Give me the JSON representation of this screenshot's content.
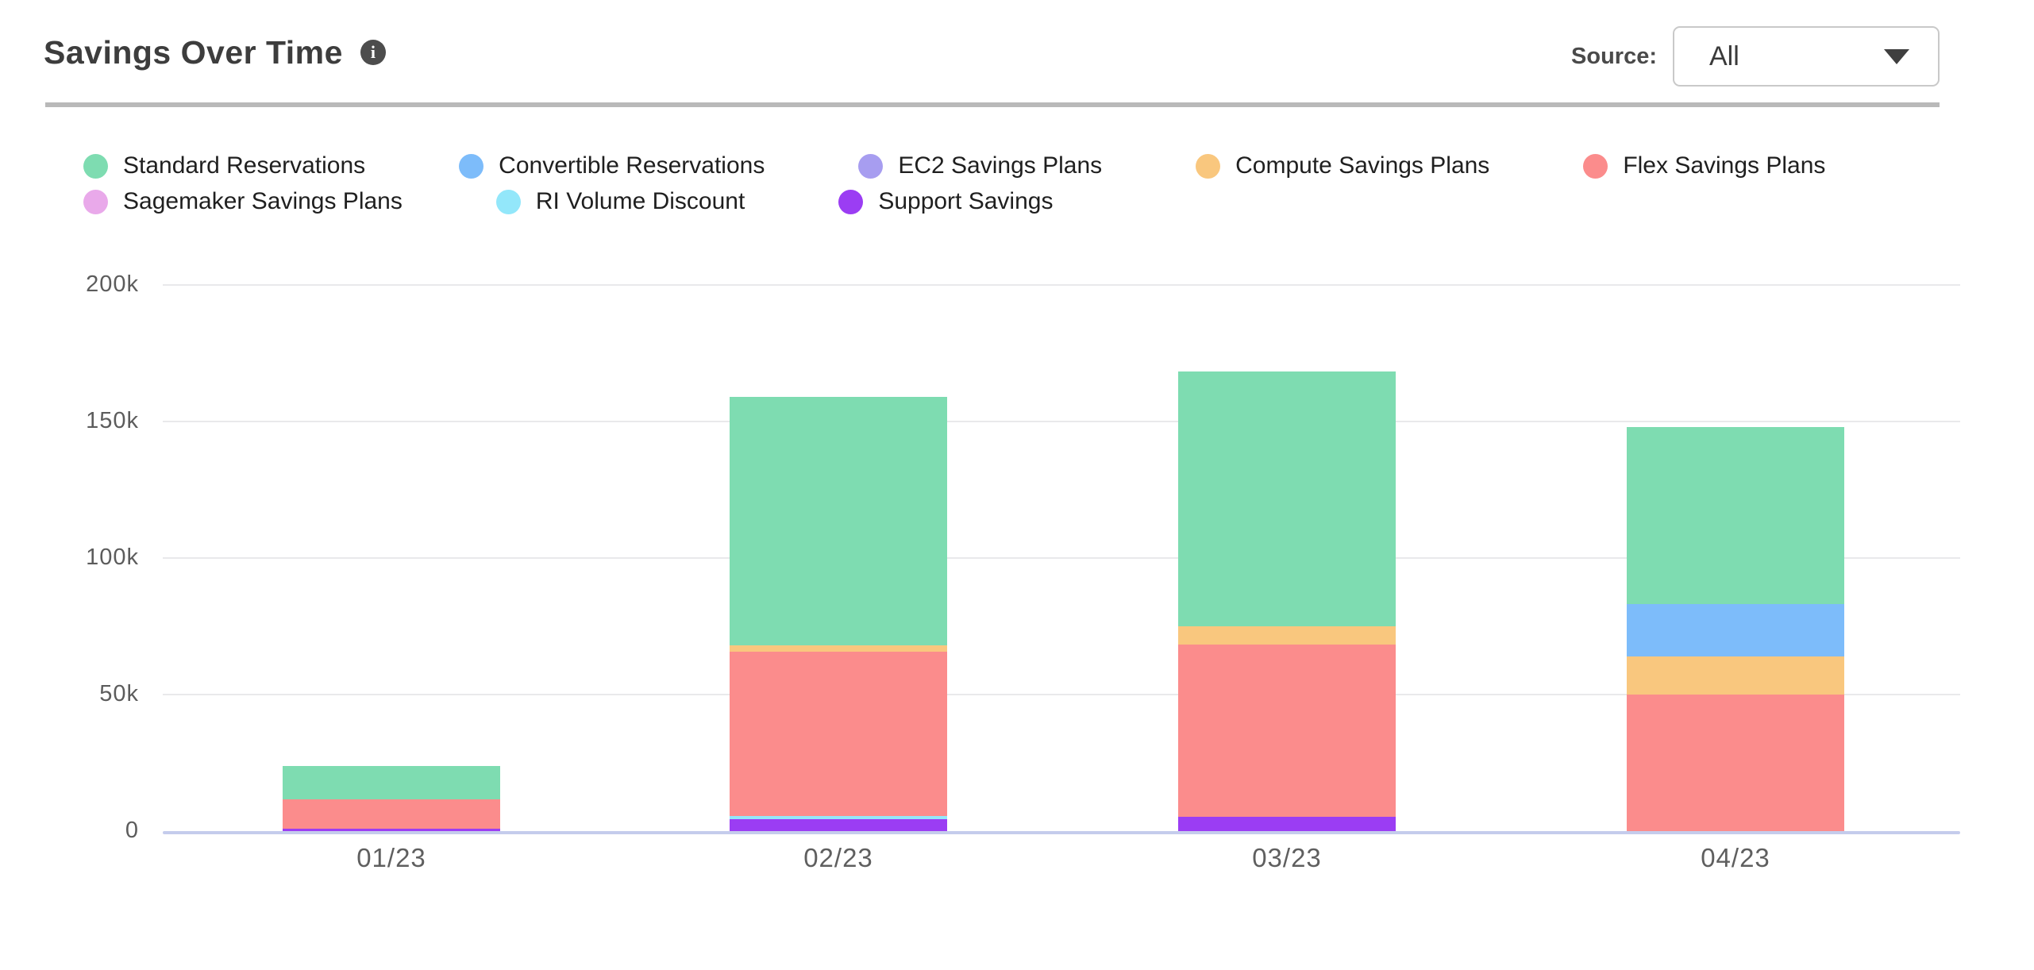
{
  "header": {
    "title": "Savings Over Time",
    "info_icon": "info-circle-icon",
    "source_label": "Source:",
    "source_value": "All"
  },
  "chart_data": {
    "type": "bar",
    "stacked": true,
    "title": "Savings Over Time",
    "xlabel": "",
    "ylabel": "",
    "y_unit": "thousands of dollars (k)",
    "ylim": [
      0,
      200
    ],
    "grid": "horizontal",
    "legend_position": "top-left, two rows",
    "stack_order": "reverse of series list (Support Savings at bottom, Standard Reservations on top)",
    "categories": [
      "01/23",
      "02/23",
      "03/23",
      "04/23"
    ],
    "series": [
      {
        "name": "Standard Reservations",
        "color": "#7EDCB1",
        "values": [
          12.2,
          91.0,
          93.5,
          65.0
        ]
      },
      {
        "name": "Convertible Reservations",
        "color": "#7DBCFA",
        "values": [
          0,
          0,
          0,
          19.0
        ]
      },
      {
        "name": "EC2 Savings Plans",
        "color": "#A79DF0",
        "values": [
          0,
          0,
          0,
          0
        ]
      },
      {
        "name": "Compute Savings Plans",
        "color": "#F9C77E",
        "values": [
          0,
          2.3,
          6.7,
          14.0
        ]
      },
      {
        "name": "Flex Savings Plans",
        "color": "#FB8C8C",
        "values": [
          10.5,
          60.0,
          63.0,
          50.0
        ]
      },
      {
        "name": "Sagemaker Savings Plans",
        "color": "#E9A9EA",
        "values": [
          0,
          0,
          0,
          0
        ]
      },
      {
        "name": "RI Volume Discount",
        "color": "#93E7FA",
        "values": [
          0,
          1.2,
          0,
          0
        ]
      },
      {
        "name": "Support Savings",
        "color": "#9B3DF3",
        "values": [
          1.0,
          4.4,
          5.2,
          0
        ]
      }
    ],
    "yticks": [
      {
        "value": 0,
        "label": "0"
      },
      {
        "value": 50,
        "label": "50k"
      },
      {
        "value": 100,
        "label": "100k"
      },
      {
        "value": 150,
        "label": "150k"
      },
      {
        "value": 200,
        "label": "200k"
      }
    ],
    "totals_k": [
      23.7,
      158.9,
      168.4,
      148.0
    ]
  }
}
